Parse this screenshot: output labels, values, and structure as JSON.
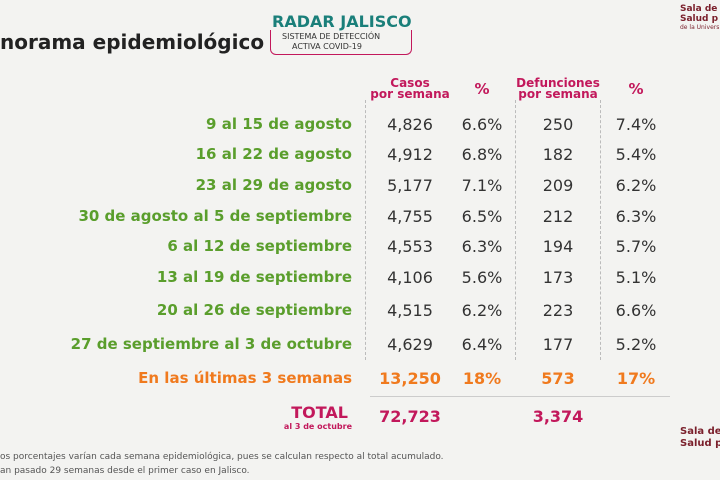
{
  "header": {
    "title": "norama epidemiológico",
    "logo": {
      "name": "RADAR JALISCO",
      "line1": "SISTEMA DE DETECCIÓN",
      "line2": "ACTIVA COVID-19"
    },
    "corner": {
      "line1": "Sala de",
      "line2": "Salud p",
      "line3": "de la Univers"
    }
  },
  "table": {
    "columns": [
      "Casos\npor semana",
      "%",
      "Defunciones\npor semana",
      "%"
    ],
    "rows": [
      [
        "9 al 15 de agosto",
        "4,826",
        "6.6%",
        "250",
        "7.4%"
      ],
      [
        "16 al 22 de agosto",
        "4,912",
        "6.8%",
        "182",
        "5.4%"
      ],
      [
        "23 al 29 de agosto",
        "5,177",
        "7.1%",
        "209",
        "6.2%"
      ],
      [
        "30 de agosto al 5 de septiembre",
        "4,755",
        "6.5%",
        "212",
        "6.3%"
      ],
      [
        "6 al 12 de septiembre",
        "4,553",
        "6.3%",
        "194",
        "5.7%"
      ],
      [
        "13 al 19 de septiembre",
        "4,106",
        "5.6%",
        "173",
        "5.1%"
      ],
      [
        "20 al 26 de septiembre",
        "4,515",
        "6.2%",
        "223",
        "6.6%"
      ],
      [
        "27 de septiembre al 3 de octubre",
        "4,629",
        "6.4%",
        "177",
        "5.2%"
      ]
    ],
    "summary": [
      "En las últimas 3 semanas",
      "13,250",
      "18%",
      "573",
      "17%"
    ],
    "total": {
      "label": "TOTAL",
      "sublabel": "al 3 de octubre",
      "cases": "72,723",
      "deaths": "3,374"
    }
  },
  "footer": {
    "notes": [
      "os porcentajes varían cada semana epidemiológica, pues se calculan respecto al total acumulado.",
      "an pasado 29 semanas desde el primer caso en Jalisco."
    ],
    "corner": {
      "line1": "Sala de",
      "line2": "Salud p"
    }
  }
}
